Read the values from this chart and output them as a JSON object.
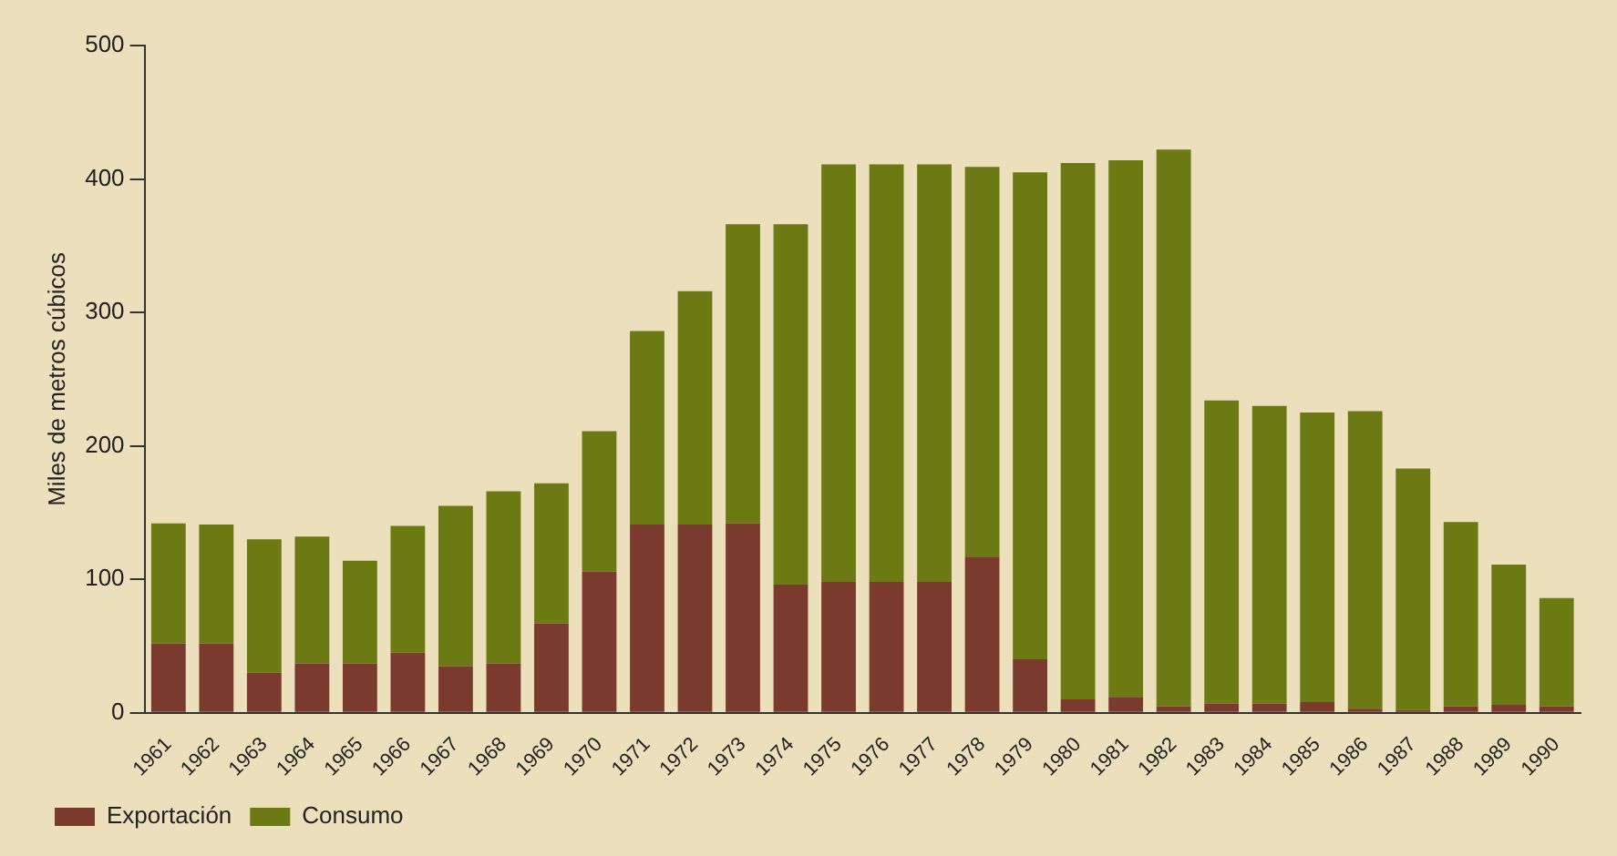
{
  "chart_data": {
    "type": "bar",
    "stacked": true,
    "ylabel": "Miles de metros cúbicos",
    "categories": [
      "1961",
      "1962",
      "1963",
      "1964",
      "1965",
      "1966",
      "1967",
      "1968",
      "1969",
      "1970",
      "1971",
      "1972",
      "1973",
      "1974",
      "1975",
      "1976",
      "1977",
      "1978",
      "1979",
      "1980",
      "1981",
      "1982",
      "1983",
      "1984",
      "1985",
      "1986",
      "1987",
      "1988",
      "1989",
      "1990"
    ],
    "series": [
      {
        "name": "Exportación",
        "color": "#7a3a2e",
        "values": [
          52,
          52,
          30,
          37,
          37,
          45,
          35,
          37,
          67,
          106,
          141,
          141,
          142,
          96,
          98,
          98,
          98,
          117,
          40,
          10,
          12,
          5,
          7,
          7,
          8,
          3,
          2,
          5,
          6,
          5
        ]
      },
      {
        "name": "Consumo",
        "color": "#6b7a12",
        "values": [
          90,
          89,
          100,
          95,
          77,
          95,
          120,
          129,
          105,
          105,
          145,
          175,
          224,
          270,
          313,
          313,
          313,
          292,
          365,
          402,
          402,
          417,
          227,
          223,
          217,
          223,
          181,
          138,
          105,
          81
        ]
      }
    ],
    "ylim": [
      0,
      500
    ],
    "yticks": [
      0,
      100,
      200,
      300,
      400,
      500
    ],
    "grid": false,
    "legend": "bottom left"
  }
}
